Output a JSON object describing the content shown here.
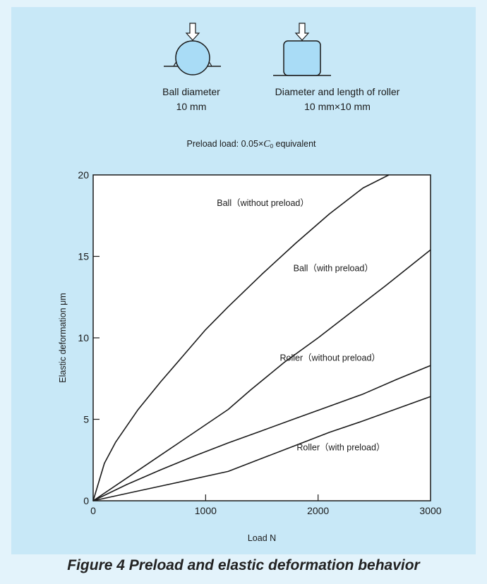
{
  "diagram": {
    "ball_label_line1": "Ball diameter",
    "ball_label_line2": "10 mm",
    "roller_label_line1": "Diameter and length of roller",
    "roller_label_line2": "10 mm×10 mm",
    "preload_prefix": "Preload load: 0.05×",
    "preload_symbol": "C",
    "preload_subscript": "0",
    "preload_suffix": " equivalent"
  },
  "caption": "Figure 4 Preload and elastic deformation behavior",
  "colors": {
    "background": "#c8e8f7",
    "plot_area": "#ffffff",
    "curve": "#1a1a1a",
    "shape_fill": "#a9dcf6"
  },
  "chart_data": {
    "type": "line",
    "title": "",
    "xlabel": "Load N",
    "ylabel": "Elastic deformation μm",
    "xlim": [
      0,
      3000
    ],
    "ylim": [
      0,
      20
    ],
    "xticks": [
      0,
      1000,
      2000,
      3000
    ],
    "yticks": [
      0,
      5,
      10,
      15,
      20
    ],
    "grid": false,
    "series": [
      {
        "name": "Ball（without preload）",
        "x": [
          0,
          100,
          200,
          300,
          400,
          600,
          800,
          1000,
          1200,
          1500,
          1800,
          2100,
          2400,
          2630
        ],
        "y": [
          0,
          2.3,
          3.6,
          4.6,
          5.6,
          7.3,
          8.9,
          10.5,
          11.9,
          13.9,
          15.8,
          17.6,
          19.2,
          20
        ]
      },
      {
        "name": "Ball（with preload）",
        "x": [
          0,
          300,
          600,
          900,
          1200,
          1400,
          1700,
          2000,
          2300,
          2600,
          3000
        ],
        "y": [
          0,
          1.4,
          2.8,
          4.2,
          5.6,
          6.8,
          8.5,
          10.0,
          11.6,
          13.2,
          15.4
        ]
      },
      {
        "name": "Roller（without preload）",
        "x": [
          0,
          300,
          600,
          900,
          1200,
          1500,
          1800,
          2100,
          2400,
          2700,
          3000
        ],
        "y": [
          0,
          1.0,
          1.9,
          2.75,
          3.55,
          4.3,
          5.05,
          5.8,
          6.55,
          7.45,
          8.3
        ]
      },
      {
        "name": "Roller（with preload）",
        "x": [
          0,
          400,
          800,
          1200,
          1500,
          1800,
          2100,
          2400,
          2700,
          3000
        ],
        "y": [
          0,
          0.6,
          1.2,
          1.8,
          2.6,
          3.4,
          4.2,
          4.9,
          5.65,
          6.4
        ]
      }
    ],
    "annotations": [
      "Ball（without preload）",
      "Ball（with preload）",
      "Roller（without preload）",
      "Roller（with preload）"
    ]
  }
}
